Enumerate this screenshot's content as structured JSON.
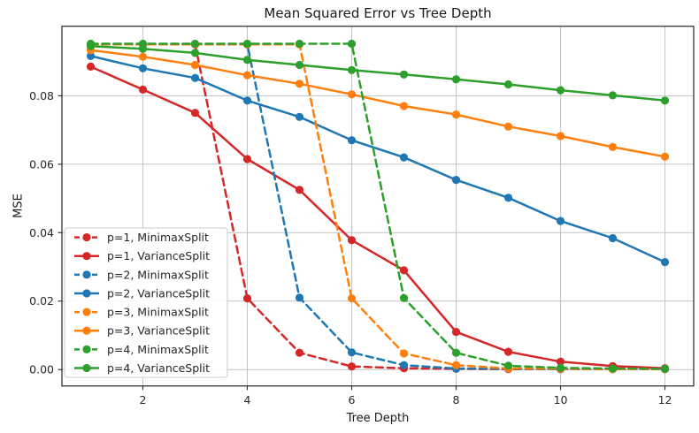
{
  "chart_data": {
    "type": "line",
    "title": "Mean Squared Error vs Tree Depth",
    "xlabel": "Tree Depth",
    "ylabel": "MSE",
    "grid": true,
    "legend_position": "lower left",
    "x": [
      1,
      2,
      3,
      4,
      5,
      6,
      7,
      8,
      9,
      10,
      11,
      12
    ],
    "xticks": [
      2,
      4,
      6,
      8,
      10,
      12
    ],
    "yticks": [
      0.0,
      0.02,
      0.04,
      0.06,
      0.08
    ],
    "ytick_labels": [
      "0.00",
      "0.02",
      "0.04",
      "0.06",
      "0.08"
    ],
    "xlim": [
      0.45,
      12.55
    ],
    "ylim": [
      -0.0048,
      0.1003
    ],
    "marker": "circle",
    "series": [
      {
        "name": "p=1, MinimaxSplit",
        "color": "#d62728",
        "linestyle": "dashed",
        "values": [
          0.095,
          0.095,
          0.095,
          0.0208,
          0.0049,
          0.0009,
          0.0004,
          0.0002,
          0.0001,
          0.0001,
          0.0001,
          0.0001
        ]
      },
      {
        "name": "p=1, VarianceSplit",
        "color": "#d62728",
        "linestyle": "solid",
        "values": [
          0.0885,
          0.0818,
          0.075,
          0.0615,
          0.0525,
          0.0378,
          0.029,
          0.011,
          0.0052,
          0.0023,
          0.001,
          0.0004
        ]
      },
      {
        "name": "p=2, MinimaxSplit",
        "color": "#1f77b4",
        "linestyle": "dashed",
        "values": [
          0.095,
          0.095,
          0.095,
          0.095,
          0.021,
          0.005,
          0.0013,
          0.0003,
          0.0002,
          0.0001,
          0.0001,
          0.0001
        ]
      },
      {
        "name": "p=2, VarianceSplit",
        "color": "#1f77b4",
        "linestyle": "solid",
        "values": [
          0.0916,
          0.088,
          0.0852,
          0.0786,
          0.0738,
          0.067,
          0.062,
          0.0554,
          0.0502,
          0.0434,
          0.0384,
          0.0314
        ]
      },
      {
        "name": "p=3, MinimaxSplit",
        "color": "#ff7f0e",
        "linestyle": "dashed",
        "values": [
          0.095,
          0.095,
          0.095,
          0.095,
          0.095,
          0.0208,
          0.0047,
          0.0013,
          0.0003,
          0.0002,
          0.0001,
          0.0001
        ]
      },
      {
        "name": "p=3, VarianceSplit",
        "color": "#ff7f0e",
        "linestyle": "solid",
        "values": [
          0.0933,
          0.0914,
          0.089,
          0.086,
          0.0835,
          0.0804,
          0.077,
          0.0745,
          0.071,
          0.0682,
          0.065,
          0.0622
        ]
      },
      {
        "name": "p=4, MinimaxSplit",
        "color": "#2ca02c",
        "linestyle": "dashed",
        "values": [
          0.0952,
          0.0952,
          0.0952,
          0.0952,
          0.0952,
          0.0952,
          0.0209,
          0.0049,
          0.0011,
          0.0005,
          0.0003,
          0.0002
        ]
      },
      {
        "name": "p=4, VarianceSplit",
        "color": "#2ca02c",
        "linestyle": "solid",
        "values": [
          0.0945,
          0.0937,
          0.0925,
          0.0905,
          0.089,
          0.0875,
          0.0862,
          0.0848,
          0.0833,
          0.0816,
          0.0801,
          0.0786
        ]
      }
    ]
  }
}
